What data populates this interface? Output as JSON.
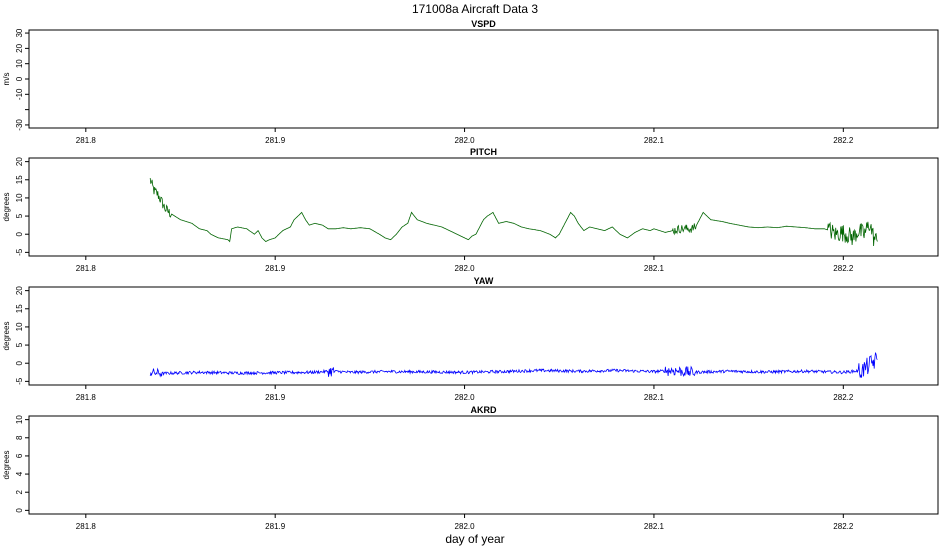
{
  "page": {
    "title": "171008a   Aircraft Data 3",
    "xlabel": "day of year"
  },
  "colors": {
    "pitch": "#006400",
    "yaw": "#0000ff",
    "frame": "#000000"
  },
  "chart_data": [
    {
      "type": "line",
      "title": "VSPD",
      "ylabel": "m/s",
      "xlim": [
        281.77,
        282.25
      ],
      "ylim": [
        -32,
        32
      ],
      "yticks": [
        -30,
        -20,
        -10,
        0,
        10,
        20,
        30
      ],
      "ytick_labels": [
        "-30",
        "",
        "-10",
        "0",
        "10",
        "20",
        "30"
      ],
      "xticks": [
        281.8,
        281.9,
        282.0,
        282.1,
        282.2
      ],
      "xtick_labels": [
        "281.8",
        "281.9",
        "282.0",
        "282.1",
        "282.2"
      ],
      "series": []
    },
    {
      "type": "line",
      "title": "PITCH",
      "ylabel": "degrees",
      "xlim": [
        281.77,
        282.25
      ],
      "ylim": [
        -6,
        21
      ],
      "yticks": [
        -5,
        0,
        5,
        10,
        15,
        20
      ],
      "ytick_labels": [
        "-5",
        "0",
        "5",
        "10",
        "15",
        "20"
      ],
      "xticks": [
        281.8,
        281.9,
        282.0,
        282.1,
        282.2
      ],
      "xtick_labels": [
        "281.8",
        "281.9",
        "282.0",
        "282.1",
        "282.2"
      ],
      "series": [
        {
          "color": "#006400",
          "noisy_ranges": [
            [
              281.834,
              281.845,
              1.5
            ],
            [
              282.11,
              282.122,
              1.2
            ],
            [
              282.192,
              282.218,
              2.5
            ]
          ],
          "x": [
            281.834,
            281.836,
            281.838,
            281.84,
            281.842,
            281.844,
            281.847,
            281.85,
            281.853,
            281.856,
            281.86,
            281.864,
            281.866,
            281.87,
            281.875,
            281.876,
            281.877,
            281.88,
            281.885,
            281.889,
            281.891,
            281.893,
            281.895,
            281.897,
            281.9,
            281.904,
            281.908,
            281.91,
            281.912,
            281.914,
            281.916,
            281.918,
            281.921,
            281.925,
            281.928,
            281.932,
            281.936,
            281.94,
            281.945,
            281.95,
            281.955,
            281.958,
            281.961,
            281.964,
            281.967,
            281.97,
            281.972,
            281.975,
            281.98,
            281.984,
            281.988,
            281.992,
            281.996,
            282.0,
            282.002,
            282.004,
            282.006,
            282.008,
            282.01,
            282.012,
            282.015,
            282.018,
            282.022,
            282.026,
            282.03,
            282.034,
            282.04,
            282.045,
            282.048,
            282.05,
            282.052,
            282.054,
            282.056,
            282.058,
            282.06,
            282.063,
            282.066,
            282.07,
            282.074,
            282.078,
            282.082,
            282.086,
            282.09,
            282.094,
            282.098,
            282.1,
            282.103,
            282.106,
            282.11,
            282.114,
            282.118,
            282.12,
            282.122,
            282.124,
            282.126,
            282.13,
            282.136,
            282.14,
            282.145,
            282.15,
            282.155,
            282.16,
            282.165,
            282.17,
            282.175,
            282.18,
            282.185,
            282.19,
            282.193,
            282.196,
            282.199,
            282.202,
            282.205,
            282.208,
            282.211,
            282.214,
            282.216,
            282.218
          ],
          "y": [
            15,
            12,
            11,
            9,
            7,
            6,
            5,
            4,
            3.5,
            3,
            1.5,
            1,
            0,
            -1,
            -1.5,
            -2,
            1.5,
            2,
            1.5,
            0,
            1,
            -1,
            -2,
            -1.5,
            -1,
            1,
            2,
            4,
            5,
            6,
            4,
            2.5,
            3,
            2.5,
            1.5,
            1.5,
            1.8,
            1.5,
            1.8,
            1.5,
            0,
            -1,
            -1.5,
            0,
            2,
            3,
            6,
            4,
            3,
            2.5,
            2,
            1,
            0,
            -1,
            -1.5,
            -0.5,
            0,
            2,
            4,
            5,
            6,
            3,
            3.5,
            3,
            2,
            1.5,
            1,
            0,
            -1,
            0,
            2,
            4,
            6,
            5,
            3,
            1,
            2,
            1.5,
            1,
            2,
            0,
            -1,
            0.5,
            1.5,
            1,
            1.5,
            1,
            0.5,
            1,
            1.5,
            1.5,
            1.5,
            2,
            4,
            6,
            4,
            3.5,
            3,
            2.5,
            2,
            1.8,
            2,
            1.8,
            2.2,
            2,
            1.8,
            1.5,
            1.5,
            1,
            0,
            0.5,
            0,
            -1,
            1,
            0,
            3,
            -1,
            -2
          ]
        }
      ]
    },
    {
      "type": "line",
      "title": "YAW",
      "ylabel": "degrees",
      "xlim": [
        281.77,
        282.25
      ],
      "ylim": [
        -6,
        21
      ],
      "yticks": [
        -5,
        0,
        5,
        10,
        15,
        20
      ],
      "ytick_labels": [
        "-5",
        "0",
        "5",
        "10",
        "15",
        "20"
      ],
      "xticks": [
        281.8,
        281.9,
        282.0,
        282.1,
        282.2
      ],
      "xtick_labels": [
        "281.8",
        "281.9",
        "282.0",
        "282.1",
        "282.2"
      ],
      "series": [
        {
          "color": "#0000ff",
          "noise": 0.4,
          "noisy_ranges": [
            [
              281.834,
              281.84,
              1.2
            ],
            [
              281.928,
              281.932,
              1.5
            ],
            [
              282.106,
              282.122,
              1.5
            ],
            [
              282.208,
              282.218,
              2.5
            ]
          ],
          "x": [
            281.834,
            281.84,
            281.86,
            281.88,
            281.9,
            281.92,
            281.93,
            281.94,
            281.96,
            281.98,
            282.0,
            282.02,
            282.04,
            282.06,
            282.08,
            282.1,
            282.11,
            282.12,
            282.14,
            282.16,
            282.18,
            282.2,
            282.21,
            282.215,
            282.218
          ],
          "y": [
            -2.5,
            -2.8,
            -2.5,
            -2.7,
            -2.6,
            -2.5,
            -2.2,
            -2.5,
            -2.3,
            -2.4,
            -2.5,
            -2.3,
            -2.0,
            -2.2,
            -2.0,
            -2.3,
            -2.0,
            -2.5,
            -2.2,
            -2.4,
            -2.2,
            -2.5,
            -2.0,
            0,
            1
          ]
        }
      ]
    },
    {
      "type": "line",
      "title": "AKRD",
      "ylabel": "degrees",
      "xlim": [
        281.77,
        282.25
      ],
      "ylim": [
        -0.4,
        10.4
      ],
      "yticks": [
        0,
        2,
        4,
        6,
        8,
        10
      ],
      "ytick_labels": [
        "0",
        "2",
        "4",
        "6",
        "8",
        "10"
      ],
      "xticks": [
        281.8,
        281.9,
        282.0,
        282.1,
        282.2
      ],
      "xtick_labels": [
        "281.8",
        "281.9",
        "282.0",
        "282.1",
        "282.2"
      ],
      "series": []
    }
  ]
}
